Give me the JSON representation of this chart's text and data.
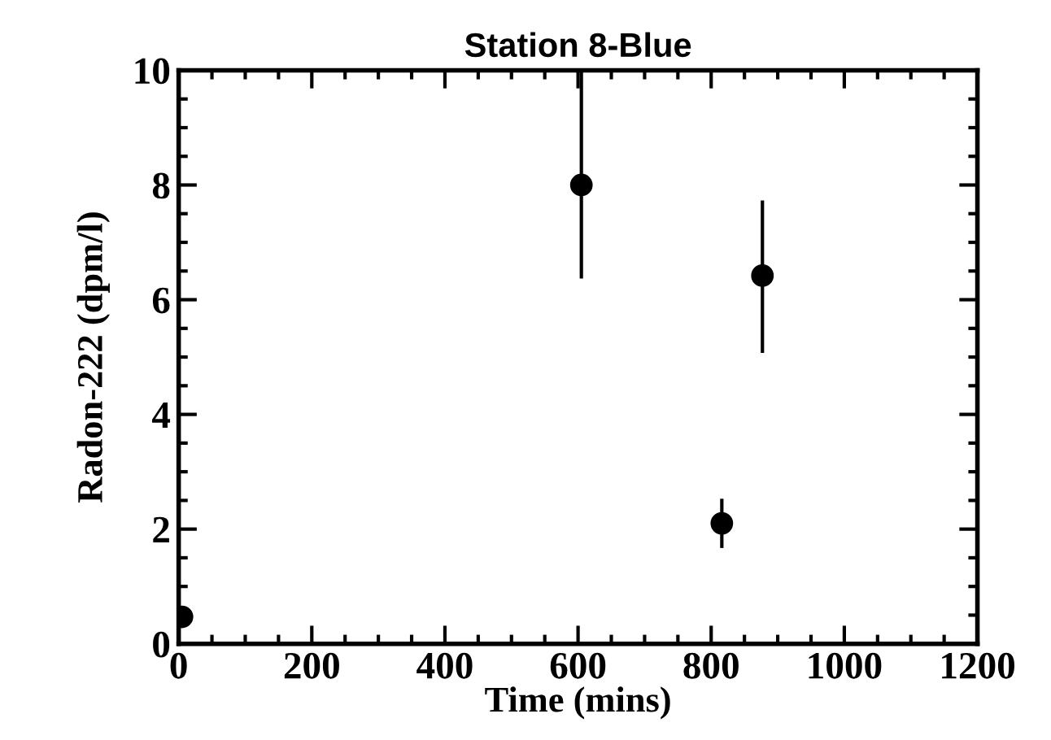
{
  "chart_data": {
    "type": "scatter",
    "title": "Station 8-Blue",
    "xlabel": "Time (mins)",
    "ylabel": "Radon-222 (dpm/l)",
    "x": [
      5,
      605,
      816,
      877
    ],
    "series": [
      {
        "color": "#000000",
        "values": [
          0.47,
          8.0,
          2.1,
          6.42
        ],
        "errors": [
          null,
          [
            6.4,
            10.0
          ],
          [
            1.7,
            2.5
          ],
          [
            5.1,
            7.7
          ]
        ]
      }
    ],
    "marker": "circle",
    "grid": false,
    "legend": false,
    "xlim": [
      0,
      1200
    ],
    "xticks": [
      0,
      200,
      400,
      600,
      800,
      1000,
      1200
    ],
    "ylim": [
      0,
      10
    ],
    "yticks": [
      0,
      2,
      4,
      6,
      8,
      10
    ]
  }
}
